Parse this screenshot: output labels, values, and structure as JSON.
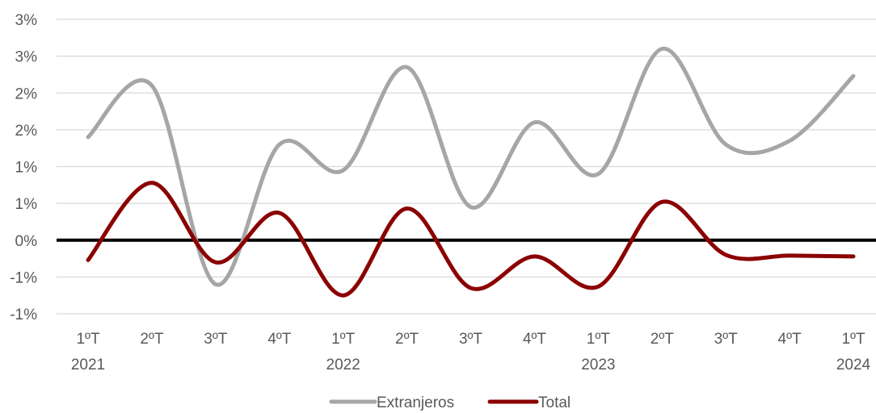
{
  "chart_data": {
    "type": "line",
    "categories": [
      "1ºT",
      "2ºT",
      "3ºT",
      "4ºT",
      "1ºT",
      "2ºT",
      "3ºT",
      "4ºT",
      "1ºT",
      "2ºT",
      "3ºT",
      "4ºT",
      "1ºT"
    ],
    "year_labels": [
      "2021",
      "",
      "",
      "",
      "2022",
      "",
      "",
      "",
      "2023",
      "",
      "",
      "",
      "2024"
    ],
    "y_tick_values": [
      -1.0,
      -0.5,
      0.0,
      0.5,
      1.0,
      1.5,
      2.0,
      2.5,
      3.0
    ],
    "y_tick_labels": [
      "-1%",
      "-1%",
      "0%",
      "1%",
      "1%",
      "2%",
      "2%",
      "3%",
      "3%"
    ],
    "ylim": [
      -1.0,
      3.0
    ],
    "grid": true,
    "zero_line": true,
    "legend_position": "bottom",
    "series": [
      {
        "name": "Extranjeros",
        "color": "#a6a6a6",
        "values": [
          1.4,
          2.1,
          -0.6,
          1.3,
          0.95,
          2.35,
          0.45,
          1.6,
          0.9,
          2.6,
          1.3,
          1.35,
          2.23
        ]
      },
      {
        "name": "Total",
        "color": "#8b0000",
        "values": [
          -0.27,
          0.78,
          -0.3,
          0.37,
          -0.75,
          0.43,
          -0.65,
          -0.22,
          -0.63,
          0.52,
          -0.2,
          -0.21,
          -0.22
        ]
      }
    ]
  }
}
